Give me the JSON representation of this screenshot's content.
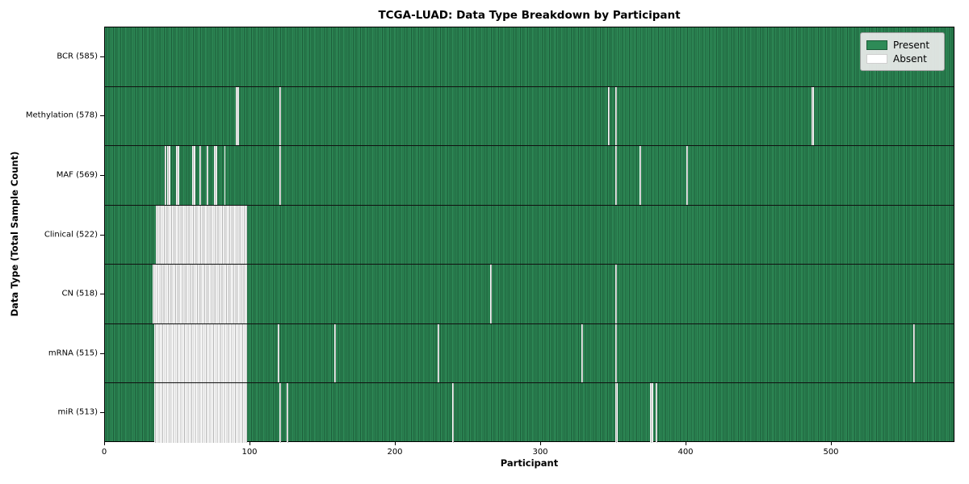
{
  "chart_data": {
    "type": "heatmap",
    "title": "TCGA-LUAD: Data Type Breakdown by Participant",
    "xlabel": "Participant",
    "ylabel": "Data Type (Total Sample Count)",
    "xlim": [
      0,
      585
    ],
    "x_ticks": [
      0,
      100,
      200,
      300,
      400,
      500
    ],
    "grid": false,
    "legend_position": "upper right",
    "legend": [
      {
        "label": "Present",
        "value": "present"
      },
      {
        "label": "Absent",
        "value": "absent"
      }
    ],
    "colors": {
      "present": "#2e8b57",
      "present_edge": "#1c5c39",
      "absent": "#ffffff",
      "absent_edge": "#b3b3b3",
      "row_separator": "#101010"
    },
    "rows": [
      {
        "label": "BCR (585)",
        "data_type": "BCR",
        "present_count": 585,
        "absent_ranges": []
      },
      {
        "label": "Methylation (578)",
        "data_type": "Methylation",
        "present_count": 578,
        "absent_ranges": [
          [
            90,
            91
          ],
          [
            120,
            120
          ],
          [
            346,
            346
          ],
          [
            351,
            351
          ],
          [
            486,
            487
          ]
        ]
      },
      {
        "label": "MAF (569)",
        "data_type": "MAF",
        "present_count": 569,
        "absent_ranges": [
          [
            41,
            41
          ],
          [
            43,
            44
          ],
          [
            49,
            50
          ],
          [
            60,
            61
          ],
          [
            65,
            65
          ],
          [
            70,
            70
          ],
          [
            75,
            76
          ],
          [
            82,
            82
          ],
          [
            120,
            120
          ],
          [
            351,
            351
          ],
          [
            368,
            368
          ],
          [
            400,
            400
          ]
        ]
      },
      {
        "label": "Clinical (522)",
        "data_type": "Clinical",
        "present_count": 522,
        "absent_ranges": [
          [
            35,
            97
          ]
        ]
      },
      {
        "label": "CN (518)",
        "data_type": "CN",
        "present_count": 518,
        "absent_ranges": [
          [
            33,
            97
          ],
          [
            265,
            265
          ],
          [
            351,
            351
          ]
        ]
      },
      {
        "label": "mRNA (515)",
        "data_type": "mRNA",
        "present_count": 515,
        "absent_ranges": [
          [
            34,
            97
          ],
          [
            119,
            119
          ],
          [
            158,
            158
          ],
          [
            229,
            229
          ],
          [
            328,
            328
          ],
          [
            351,
            351
          ],
          [
            556,
            556
          ]
        ]
      },
      {
        "label": "miR (513)",
        "data_type": "miR",
        "present_count": 513,
        "absent_ranges": [
          [
            34,
            97
          ],
          [
            120,
            120
          ],
          [
            125,
            125
          ],
          [
            239,
            239
          ],
          [
            351,
            352
          ],
          [
            375,
            376
          ],
          [
            379,
            379
          ]
        ]
      }
    ]
  }
}
